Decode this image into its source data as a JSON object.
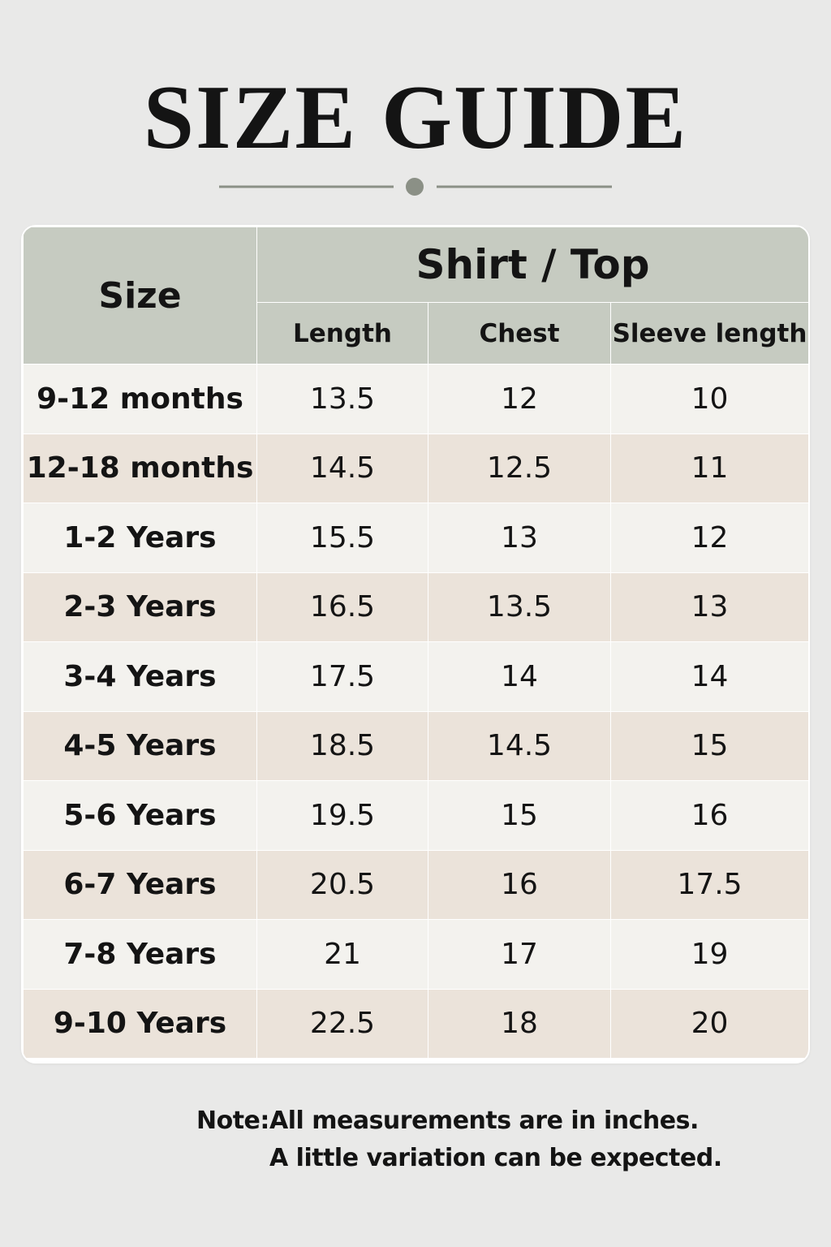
{
  "header": {
    "title": "SIZE GUIDE"
  },
  "table": {
    "size_header": "Size",
    "group_header": "Shirt / Top",
    "columns": [
      "Length",
      "Chest",
      "Sleeve length"
    ],
    "rows": [
      [
        "9-12 months",
        13.5,
        12,
        10
      ],
      [
        "12-18 months",
        14.5,
        12.5,
        11
      ],
      [
        "1-2 Years",
        15.5,
        13,
        12
      ],
      [
        "2-3 Years",
        16.5,
        13.5,
        13
      ],
      [
        "3-4 Years",
        17.5,
        14,
        14
      ],
      [
        "4-5 Years",
        18.5,
        14.5,
        15
      ],
      [
        "5-6 Years",
        19.5,
        15,
        16
      ],
      [
        "6-7 Years",
        20.5,
        16,
        17.5
      ],
      [
        "7-8 Years",
        21,
        17,
        19
      ],
      [
        "9-10 Years",
        22.5,
        18,
        20
      ]
    ]
  },
  "note": {
    "label": "Note:",
    "lines": [
      "All measurements are in inches.",
      "A little variation can be expected."
    ]
  }
}
